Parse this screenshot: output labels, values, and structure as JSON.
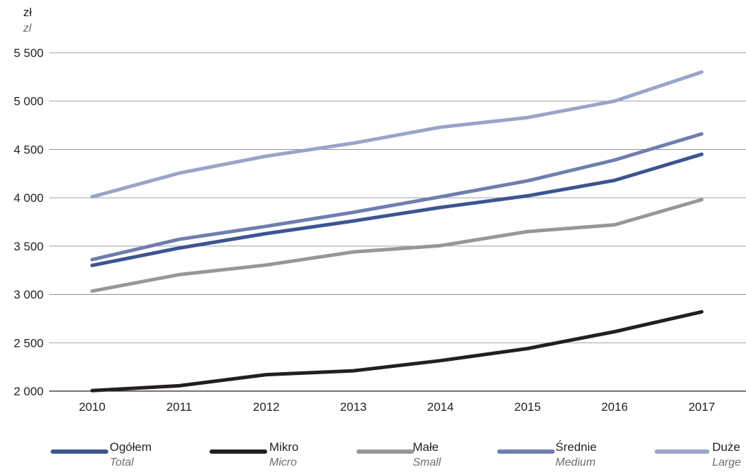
{
  "chart_data": {
    "type": "line",
    "unit_label": "zł",
    "unit_label_en": "zl",
    "x": [
      "2010",
      "2011",
      "2012",
      "2013",
      "2014",
      "2015",
      "2016",
      "2017"
    ],
    "ylim": [
      2000,
      5500
    ],
    "yticks": [
      2000,
      2500,
      3000,
      3500,
      4000,
      4500,
      5000,
      5500
    ],
    "ytick_labels": [
      "2 000",
      "2 500",
      "3 000",
      "3 500",
      "4 000",
      "4 500",
      "5 000",
      "5 500"
    ],
    "grid": true,
    "legend_position": "bottom",
    "series": [
      {
        "name": "Ogółem",
        "name_en": "Total",
        "color": "#3c5591",
        "values": [
          3300,
          3480,
          3630,
          3760,
          3900,
          4020,
          4180,
          4450
        ]
      },
      {
        "name": "Mikro",
        "name_en": "Micro",
        "color": "#231f20",
        "values": [
          2005,
          2055,
          2170,
          2210,
          2315,
          2440,
          2615,
          2820
        ]
      },
      {
        "name": "Małe",
        "name_en": "Small",
        "color": "#97979a",
        "values": [
          3035,
          3205,
          3305,
          3440,
          3505,
          3650,
          3720,
          3980
        ]
      },
      {
        "name": "Średnie",
        "name_en": "Medium",
        "color": "#6f7eae",
        "values": [
          3360,
          3570,
          3705,
          3850,
          4010,
          4175,
          4390,
          4660
        ]
      },
      {
        "name": "Duże",
        "name_en": "Large",
        "color": "#9aa3c9",
        "values": [
          4010,
          4255,
          4430,
          4565,
          4730,
          4830,
          5000,
          5300
        ]
      }
    ]
  }
}
